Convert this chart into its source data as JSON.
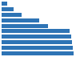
{
  "values": [
    0.08,
    0.17,
    0.28,
    0.52,
    0.65,
    0.95,
    0.97,
    0.98,
    0.99,
    1.0
  ],
  "bar_color": "#2e74b5",
  "background_color": "#ffffff",
  "xlim": [
    0,
    1.08
  ],
  "bar_height": 0.72,
  "figsize": [
    1.0,
    0.71
  ],
  "dpi": 100
}
